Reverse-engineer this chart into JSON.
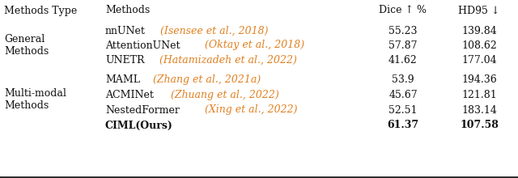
{
  "header": [
    "Methods Type",
    "Methods",
    "Dice ↑ %",
    "HD95 ↓"
  ],
  "groups": [
    {
      "type": "General\nMethods",
      "rows": [
        {
          "method_plain": "nnUNet",
          "method_cite": " (Isensee et al., 2018)",
          "dice": "55.23",
          "hd95": "139.84",
          "bold": false
        },
        {
          "method_plain": "AttentionUNet",
          "method_cite": " (Oktay et al., 2018)",
          "dice": "57.87",
          "hd95": "108.62",
          "bold": false
        },
        {
          "method_plain": "UNETR",
          "method_cite": " (Hatamizadeh et al., 2022)",
          "dice": "41.62",
          "hd95": "177.04",
          "bold": false
        }
      ]
    },
    {
      "type": "Multi-modal\nMethods",
      "rows": [
        {
          "method_plain": "MAML",
          "method_cite": " (Zhang et al., 2021a)",
          "dice": "53.9",
          "hd95": "194.36",
          "bold": false
        },
        {
          "method_plain": "ACMINet",
          "method_cite": " (Zhuang et al., 2022)",
          "dice": "45.67",
          "hd95": "121.81",
          "bold": false
        },
        {
          "method_plain": "NestedFormer",
          "method_cite": " (Xing et al., 2022)",
          "dice": "52.51",
          "hd95": "183.14",
          "bold": false
        },
        {
          "method_plain": "CIML(Ours)",
          "method_cite": "",
          "dice": "61.37",
          "hd95": "107.58",
          "bold": true
        }
      ]
    }
  ],
  "cite_color": "#E08020",
  "text_color": "#111111",
  "bg_color": "#FFFFFF",
  "line_color": "#222222",
  "font_size": 9.0
}
